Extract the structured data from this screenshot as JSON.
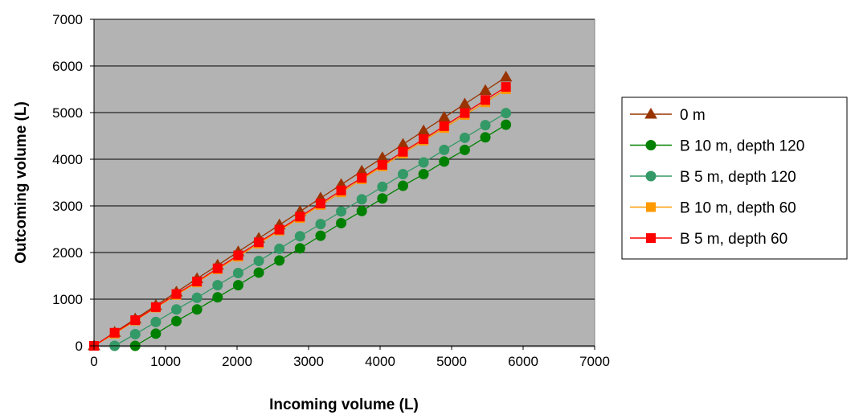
{
  "chart_data": {
    "type": "line",
    "title": "",
    "xlabel": "Incoming volume (L)",
    "ylabel": "Outcoming volume (L)",
    "xlim": [
      0,
      7000
    ],
    "ylim": [
      0,
      7000
    ],
    "x_ticks": [
      0,
      1000,
      2000,
      3000,
      4000,
      5000,
      6000,
      7000
    ],
    "y_ticks": [
      0,
      1000,
      2000,
      3000,
      4000,
      5000,
      6000,
      7000
    ],
    "grid": "horizontal",
    "plot_background": "#b3b3b3",
    "legend_position": "right",
    "x": [
      0,
      288,
      576,
      864,
      1152,
      1440,
      1728,
      2016,
      2304,
      2592,
      2880,
      3168,
      3456,
      3744,
      4032,
      4320,
      4608,
      4896,
      5184,
      5472,
      5760
    ],
    "series": [
      {
        "name": "0 m",
        "color": "#993300",
        "marker": "triangle",
        "values": [
          0,
          288,
          576,
          864,
          1152,
          1440,
          1728,
          2016,
          2304,
          2592,
          2880,
          3168,
          3456,
          3744,
          4032,
          4320,
          4608,
          4896,
          5184,
          5472,
          5760
        ]
      },
      {
        "name": "B 10 m, depth 120",
        "color": "#008000",
        "marker": "circle",
        "values": [
          null,
          null,
          0,
          260,
          530,
          780,
          1040,
          1300,
          1570,
          1830,
          2090,
          2360,
          2630,
          2890,
          3160,
          3430,
          3680,
          3950,
          4200,
          4470,
          4740
        ]
      },
      {
        "name": "B 5 m, depth 120",
        "color": "#339966",
        "marker": "circle",
        "values": [
          null,
          0,
          250,
          510,
          780,
          1030,
          1300,
          1560,
          1820,
          2080,
          2350,
          2610,
          2880,
          3140,
          3410,
          3680,
          3930,
          4200,
          4460,
          4730,
          4990
        ]
      },
      {
        "name": "B 10 m, depth 60",
        "color": "#ff9900",
        "marker": "square",
        "values": [
          0,
          260,
          540,
          820,
          1090,
          1360,
          1640,
          1910,
          2190,
          2470,
          2740,
          3020,
          3290,
          3570,
          3850,
          4120,
          4400,
          4670,
          4950,
          5220,
          5500
        ]
      },
      {
        "name": "B 5 m, depth 60",
        "color": "#ff0000",
        "marker": "square",
        "values": [
          0,
          280,
          550,
          830,
          1110,
          1380,
          1660,
          1940,
          2220,
          2490,
          2770,
          3050,
          3330,
          3600,
          3880,
          4160,
          4430,
          4710,
          4990,
          5270,
          5550
        ]
      }
    ]
  }
}
